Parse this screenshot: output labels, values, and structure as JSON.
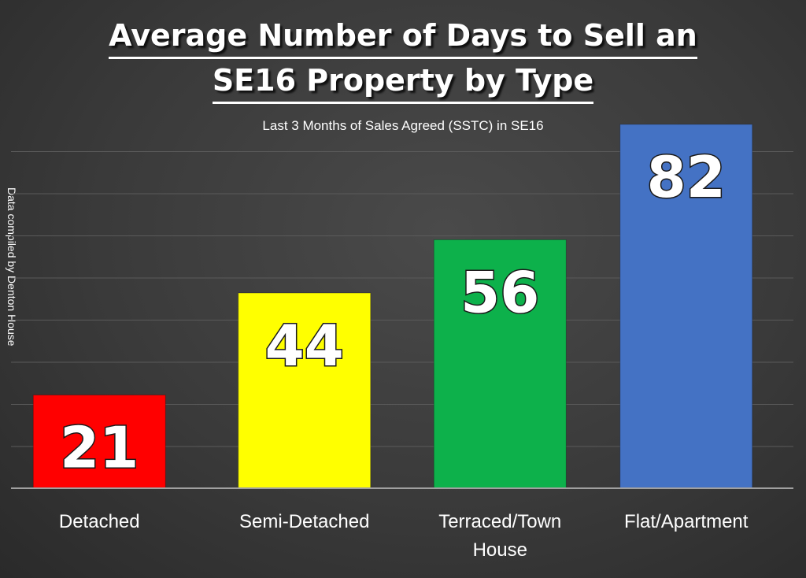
{
  "title_line1": "Average Number of Days to Sell an",
  "title_line2": "SE16 Property by Type",
  "subtitle": "Last 3 Months of Sales Agreed (SSTC) in SE16",
  "side_note": "Data compiled by Denton House",
  "chart_data": {
    "type": "bar",
    "title": "Average Number of Days to Sell an SE16 Property by Type",
    "subtitle": "Last 3 Months of Sales Agreed (SSTC) in SE16",
    "categories": [
      "Detached",
      "Semi-Detached",
      "Terraced/Town House",
      "Flat/Apartment"
    ],
    "category_lines": [
      [
        "Detached"
      ],
      [
        "Semi-Detached"
      ],
      [
        "Terraced/Town",
        "House"
      ],
      [
        "Flat/Apartment"
      ]
    ],
    "values": [
      21,
      44,
      56,
      82
    ],
    "colors": [
      "#ff0000",
      "#ffff00",
      "#0db14b",
      "#4472c4"
    ],
    "ylim": [
      0,
      85
    ],
    "grid": true,
    "data_labels": true,
    "xlabel": "",
    "ylabel": ""
  }
}
